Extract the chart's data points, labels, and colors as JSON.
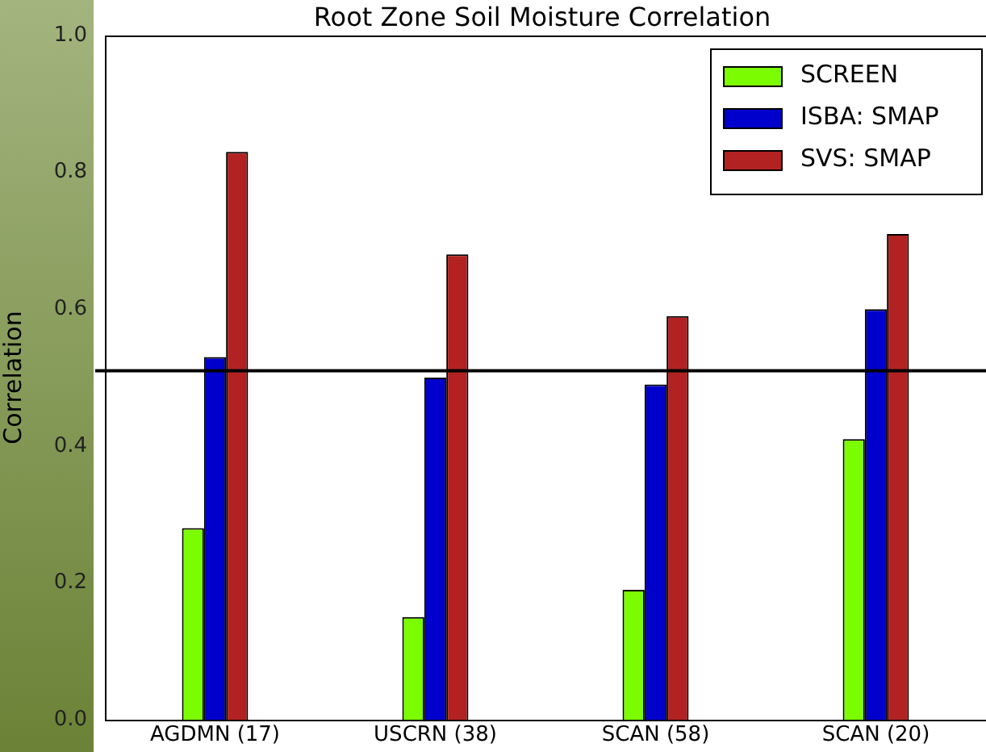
{
  "chart_data": {
    "type": "bar",
    "title": "Root Zone Soil Moisture Correlation",
    "ylabel": "Correlation",
    "categories": [
      "AGDMN (17)",
      "USCRN (38)",
      "SCAN (58)",
      "SCAN (20)"
    ],
    "series": [
      {
        "name": "SCREEN",
        "color": "#7cfc00",
        "values": [
          0.28,
          0.15,
          0.19,
          0.41
        ]
      },
      {
        "name": "ISBA: SMAP",
        "color": "#0000cd",
        "values": [
          0.53,
          0.5,
          0.49,
          0.6
        ]
      },
      {
        "name": "SVS: SMAP",
        "color": "#b22222",
        "values": [
          0.83,
          0.68,
          0.59,
          0.71
        ]
      }
    ],
    "ylim": [
      0,
      1
    ],
    "yticks": [
      {
        "value": 0,
        "label": "0.0"
      },
      {
        "value": 0.2,
        "label": "0.2"
      },
      {
        "value": 0.4,
        "label": "0.4"
      },
      {
        "value": 0.6,
        "label": "0.6"
      },
      {
        "value": 0.8,
        "label": "0.8"
      },
      {
        "value": 1,
        "label": "1.0"
      }
    ],
    "ref_lines": [
      {
        "axis": "y",
        "value": 0.51,
        "color": "#000000"
      }
    ],
    "grid": false,
    "legend": "top right"
  }
}
